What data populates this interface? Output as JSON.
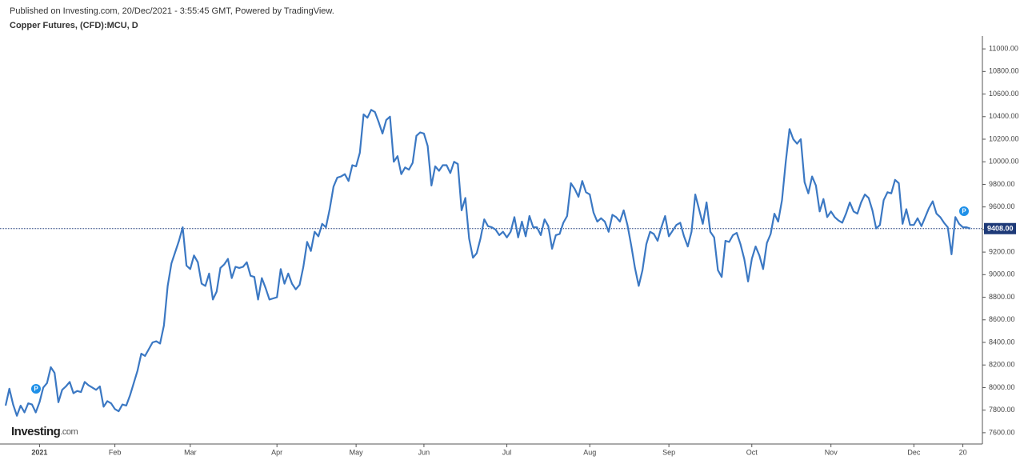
{
  "chart_data": {
    "type": "line",
    "subtitle": "Published on Investing.com, 20/Dec/2021 - 3:55:45 GMT, Powered by TradingView.",
    "title": "Copper Futures, (CFD):MCU, D",
    "logo": {
      "main": "Investing",
      "suffix": ".com"
    },
    "color": "#3b78c3",
    "categories": [
      null,
      null,
      null,
      null,
      null,
      null,
      null,
      null,
      null,
      "2021",
      null,
      null,
      null,
      null,
      null,
      null,
      null,
      null,
      null,
      null,
      null,
      null,
      null,
      null,
      null,
      null,
      null,
      null,
      null,
      "Feb",
      null,
      null,
      null,
      null,
      null,
      null,
      null,
      null,
      null,
      null,
      null,
      null,
      null,
      null,
      null,
      null,
      null,
      null,
      null,
      "Mar",
      null,
      null,
      null,
      null,
      null,
      null,
      null,
      null,
      null,
      null,
      null,
      null,
      null,
      null,
      null,
      null,
      null,
      null,
      null,
      null,
      null,
      null,
      "Apr",
      null,
      null,
      null,
      null,
      null,
      null,
      null,
      null,
      null,
      null,
      null,
      null,
      null,
      null,
      null,
      null,
      null,
      null,
      null,
      null,
      "May",
      null,
      null,
      null,
      null,
      null,
      null,
      null,
      null,
      null,
      null,
      null,
      null,
      null,
      null,
      null,
      null,
      null,
      "Jun",
      null,
      null,
      null,
      null,
      null,
      null,
      null,
      null,
      null,
      null,
      null,
      null,
      null,
      null,
      null,
      null,
      null,
      null,
      null,
      null,
      null,
      "Jul",
      null,
      null,
      null,
      null,
      null,
      null,
      null,
      null,
      null,
      null,
      null,
      null,
      null,
      null,
      null,
      null,
      null,
      null,
      null,
      null,
      null,
      "Aug",
      null,
      null,
      null,
      null,
      null,
      null,
      null,
      null,
      null,
      null,
      null,
      null,
      null,
      null,
      null,
      null,
      null,
      null,
      null,
      null,
      "Sep",
      null,
      null,
      null,
      null,
      null,
      null,
      null,
      null,
      null,
      null,
      null,
      null,
      null,
      null,
      null,
      null,
      null,
      null,
      null,
      null,
      null,
      "Oct",
      null,
      null,
      null,
      null,
      null,
      null,
      null,
      null,
      null,
      null,
      null,
      null,
      null,
      null,
      null,
      null,
      null,
      null,
      null,
      null,
      "Nov",
      null,
      null,
      null,
      null,
      null,
      null,
      null,
      null,
      null,
      null,
      null,
      null,
      null,
      null,
      null,
      null,
      null,
      null,
      null,
      null,
      null,
      "Dec",
      null,
      null,
      null,
      null,
      null,
      null,
      null,
      null,
      null,
      null,
      null,
      null,
      "20",
      null,
      null
    ],
    "values": [
      7840,
      7990,
      7850,
      7750,
      7840,
      7780,
      7860,
      7850,
      7780,
      7870,
      8000,
      8040,
      8180,
      8130,
      7870,
      7980,
      8010,
      8050,
      7950,
      7970,
      7960,
      8050,
      8020,
      8000,
      7980,
      8010,
      7830,
      7880,
      7860,
      7810,
      7790,
      7850,
      7840,
      7930,
      8040,
      8150,
      8300,
      8280,
      8340,
      8400,
      8410,
      8390,
      8550,
      8900,
      9100,
      9200,
      9300,
      9420,
      9080,
      9050,
      9170,
      9110,
      8920,
      8900,
      9010,
      8780,
      8850,
      9060,
      9090,
      9140,
      8970,
      9070,
      9060,
      9070,
      9110,
      8990,
      8980,
      8780,
      8970,
      8880,
      8780,
      8790,
      8800,
      9050,
      8920,
      9010,
      8920,
      8870,
      8910,
      9070,
      9290,
      9210,
      9380,
      9340,
      9450,
      9420,
      9580,
      9780,
      9860,
      9870,
      9890,
      9830,
      9970,
      9960,
      10080,
      10420,
      10390,
      10460,
      10440,
      10350,
      10250,
      10370,
      10400,
      10000,
      10050,
      9890,
      9950,
      9930,
      9990,
      10230,
      10260,
      10250,
      10140,
      9790,
      9960,
      9920,
      9970,
      9970,
      9900,
      10000,
      9980,
      9570,
      9680,
      9320,
      9150,
      9190,
      9320,
      9490,
      9430,
      9420,
      9400,
      9350,
      9380,
      9330,
      9380,
      9510,
      9330,
      9470,
      9340,
      9520,
      9420,
      9420,
      9350,
      9490,
      9430,
      9230,
      9350,
      9360,
      9460,
      9520,
      9810,
      9760,
      9690,
      9830,
      9730,
      9710,
      9550,
      9470,
      9500,
      9470,
      9380,
      9530,
      9510,
      9470,
      9570,
      9440,
      9260,
      9060,
      8900,
      9040,
      9270,
      9380,
      9360,
      9300,
      9420,
      9520,
      9340,
      9390,
      9440,
      9460,
      9340,
      9250,
      9380,
      9710,
      9580,
      9450,
      9640,
      9380,
      9330,
      9040,
      8980,
      9300,
      9290,
      9350,
      9370,
      9270,
      9140,
      8940,
      9140,
      9250,
      9170,
      9050,
      9280,
      9360,
      9540,
      9470,
      9660,
      10000,
      10290,
      10200,
      10160,
      10200,
      9820,
      9720,
      9870,
      9790,
      9560,
      9670,
      9510,
      9560,
      9510,
      9480,
      9460,
      9540,
      9640,
      9560,
      9540,
      9640,
      9710,
      9680,
      9570,
      9410,
      9440,
      9660,
      9730,
      9720,
      9840,
      9810,
      9450,
      9580,
      9440,
      9440,
      9500,
      9430,
      9510,
      9590,
      9650,
      9540,
      9510,
      9460,
      9420,
      9180,
      9510,
      9450,
      9420,
      9420,
      9408
    ],
    "last_value_label": "9408.00",
    "event_markers": [
      "P",
      "P"
    ],
    "ylim": [
      7500,
      11100
    ],
    "yticks": [
      {
        "value": 7600,
        "label": "7600.00"
      },
      {
        "value": 7800,
        "label": "7800.00"
      },
      {
        "value": 8000,
        "label": "8000.00"
      },
      {
        "value": 8200,
        "label": "8200.00"
      },
      {
        "value": 8400,
        "label": "8400.00"
      },
      {
        "value": 8600,
        "label": "8600.00"
      },
      {
        "value": 8800,
        "label": "8800.00"
      },
      {
        "value": 9000,
        "label": "9000.00"
      },
      {
        "value": 9200,
        "label": "9200.00"
      },
      {
        "value": 9400,
        "label": "9400.00"
      },
      {
        "value": 9600,
        "label": "9600.00"
      },
      {
        "value": 9800,
        "label": "9800.00"
      },
      {
        "value": 10000,
        "label": "10000.00"
      },
      {
        "value": 10200,
        "label": "10200.00"
      },
      {
        "value": 10400,
        "label": "10400.00"
      },
      {
        "value": 10600,
        "label": "10600.00"
      },
      {
        "value": 10800,
        "label": "10800.00"
      },
      {
        "value": 11000,
        "label": "11000.00"
      }
    ]
  }
}
